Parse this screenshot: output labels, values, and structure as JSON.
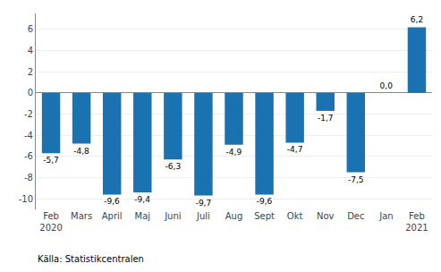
{
  "chart_data": {
    "type": "bar",
    "categories": [
      "Feb\n2020",
      "Mars",
      "April",
      "Maj",
      "Juni",
      "Juli",
      "Aug",
      "Sept",
      "Okt",
      "Nov",
      "Dec",
      "Jan",
      "Feb\n2021"
    ],
    "values": [
      -5.7,
      -4.8,
      -9.6,
      -9.4,
      -6.3,
      -9.7,
      -4.9,
      -9.6,
      -4.7,
      -1.7,
      -7.5,
      0.0,
      6.2
    ],
    "value_labels": [
      "-5,7",
      "-4,8",
      "-9,6",
      "-9,4",
      "-6,3",
      "-9,7",
      "-4,9",
      "-9,6",
      "-4,7",
      "-1,7",
      "-7,5",
      "0,0",
      "6,2"
    ],
    "data_labels": true,
    "color": "#1a72b0",
    "ylim": [
      -11,
      7.5
    ],
    "yticks": [
      -10,
      -8,
      -6,
      -4,
      -2,
      0,
      2,
      4,
      6
    ],
    "grid": true,
    "annotations": [
      "Källa: Statistikcentralen"
    ]
  }
}
